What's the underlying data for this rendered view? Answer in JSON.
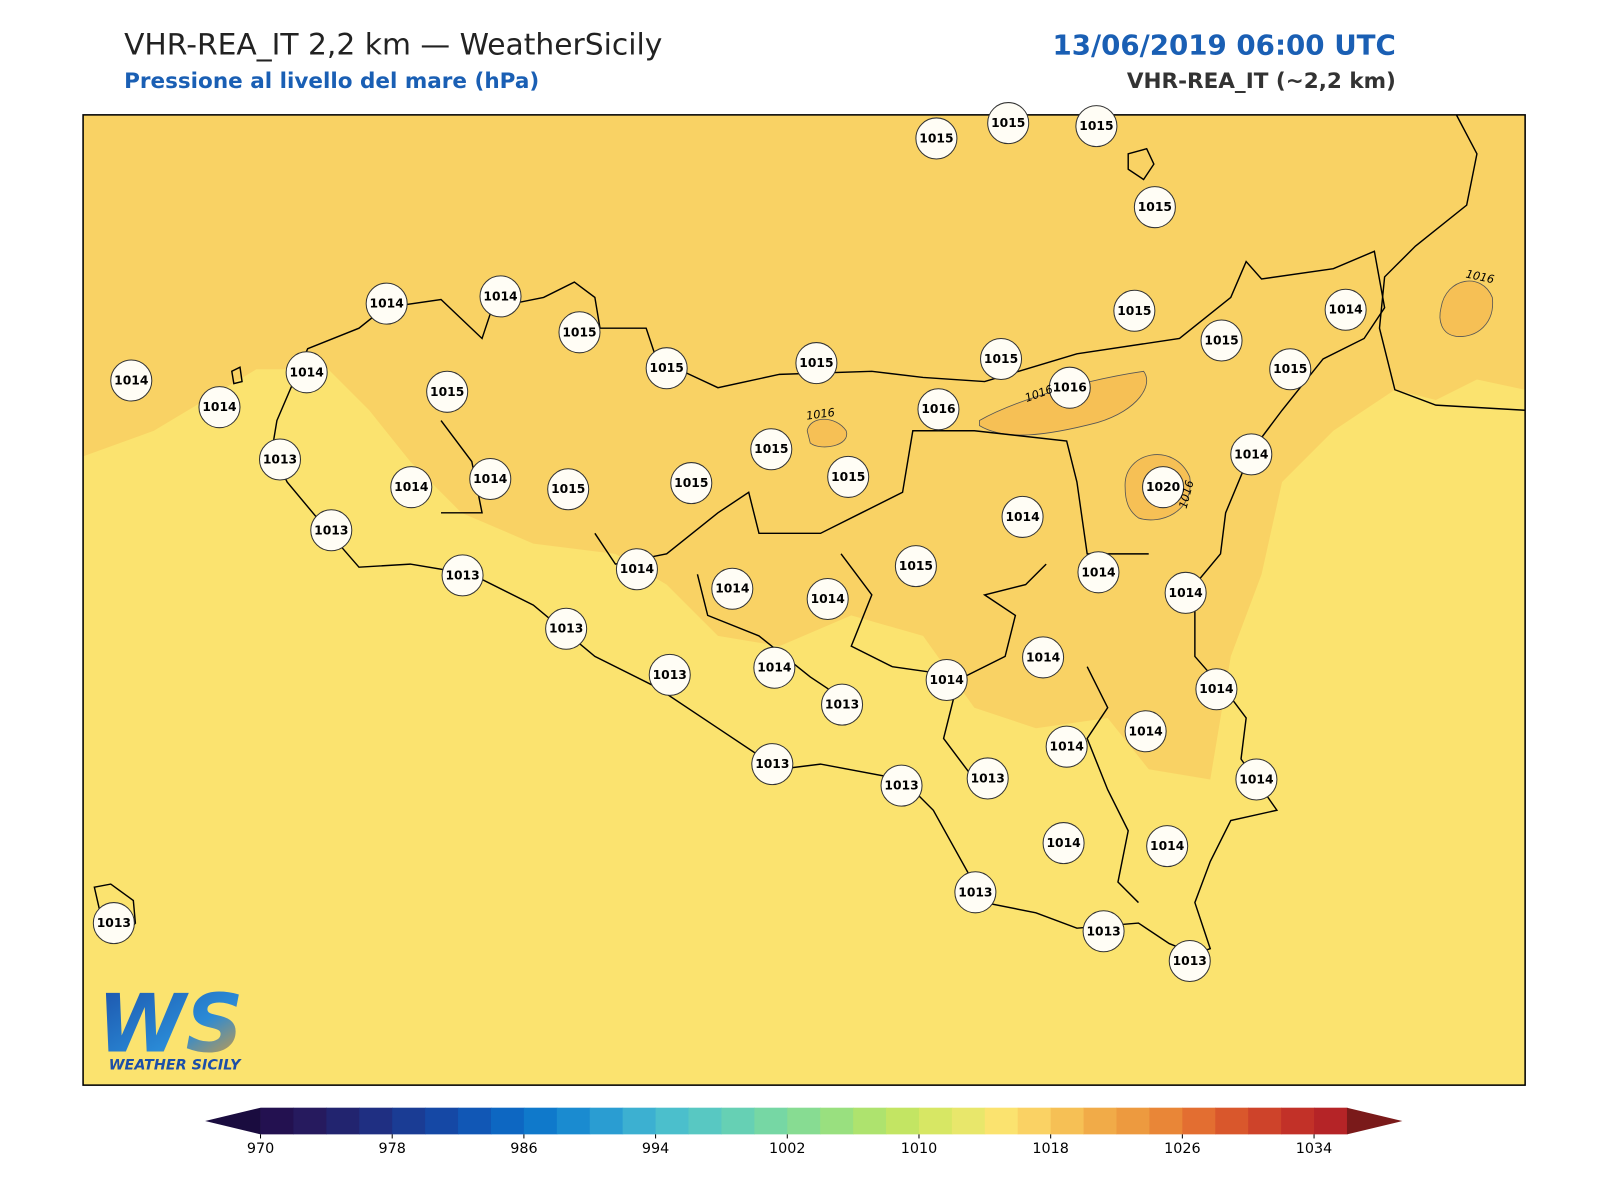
{
  "header": {
    "title": "VHR-REA_IT 2,2 km — WeatherSicily",
    "subtitle": "Pressione al livello del mare (hPa)",
    "date": "13/06/2019 06:00 UTC",
    "model": "VHR-REA_IT (~2,2 km)"
  },
  "stations": [
    "1015",
    "1015",
    "1015",
    "1015",
    "1014",
    "1014",
    "1015",
    "1015",
    "1015",
    "1015",
    "1015",
    "1015",
    "1014",
    "1015",
    "1014",
    "1014",
    "1014",
    "1015",
    "1016",
    "1016",
    "1015",
    "1014",
    "1013",
    "1014",
    "1014",
    "1015",
    "1015",
    "1015",
    "1020",
    "1014",
    "1013",
    "1013",
    "1014",
    "1014",
    "1014",
    "1015",
    "1014",
    "1014",
    "1013",
    "1013",
    "1014",
    "1013",
    "1014",
    "1014",
    "1014",
    "1014",
    "1014",
    "1013",
    "1013",
    "1013",
    "1014",
    "1014",
    "1014",
    "1013",
    "1013",
    "1013",
    "1013"
  ],
  "contour_labels": [
    "1016",
    "1016",
    "1016",
    "1016"
  ],
  "logo": {
    "mark": "WS",
    "name": "WEATHER SICILY"
  },
  "colorbar": {
    "ticks": [
      970,
      978,
      986,
      994,
      1002,
      1010,
      1018,
      1026,
      1034
    ],
    "step": 2,
    "under": "#1a0c3f",
    "over": "#7a1a1a",
    "colors": [
      "#231150",
      "#261a5e",
      "#22246f",
      "#1f2f82",
      "#1a3c94",
      "#1548a5",
      "#1157b5",
      "#0d67c2",
      "#0f79cb",
      "#1a8bd0",
      "#2a9dd2",
      "#3cb0d1",
      "#4bbfcc",
      "#58c8c2",
      "#66d0b4",
      "#76d7a4",
      "#87dc92",
      "#99e07f",
      "#aee36e",
      "#c3e563",
      "#d7e764",
      "#e8e76b",
      "#fbe36f",
      "#fad264",
      "#f6c055",
      "#f1ab48",
      "#ed9a3f",
      "#e98637",
      "#e36e31",
      "#d9572c",
      "#ce432a",
      "#c23128",
      "#b52427"
    ]
  }
}
